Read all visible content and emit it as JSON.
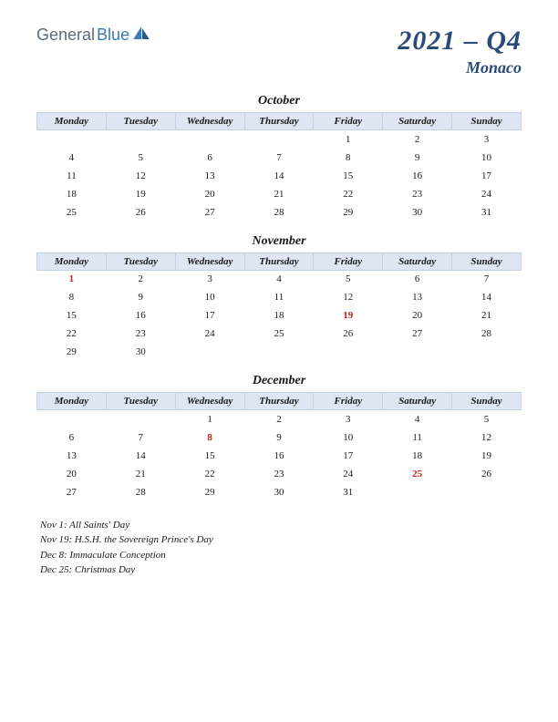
{
  "logo": {
    "part1": "General",
    "part2": "Blue"
  },
  "period": "2021 – Q4",
  "country": "Monaco",
  "colors": {
    "header_bg": "#dde6f2",
    "header_border": "#c5d2e6",
    "title_color": "#2a4a7a",
    "holiday_color": "#c02020",
    "text_color": "#1a1a1a",
    "logo_gray": "#5a6b7a",
    "logo_blue": "#3a7ab5"
  },
  "day_headers": [
    "Monday",
    "Tuesday",
    "Wednesday",
    "Thursday",
    "Friday",
    "Saturday",
    "Sunday"
  ],
  "months": [
    {
      "name": "October",
      "weeks": [
        [
          "",
          "",
          "",
          "",
          "1",
          "2",
          "3"
        ],
        [
          "4",
          "5",
          "6",
          "7",
          "8",
          "9",
          "10"
        ],
        [
          "11",
          "12",
          "13",
          "14",
          "15",
          "16",
          "17"
        ],
        [
          "18",
          "19",
          "20",
          "21",
          "22",
          "23",
          "24"
        ],
        [
          "25",
          "26",
          "27",
          "28",
          "29",
          "30",
          "31"
        ]
      ],
      "holidays": []
    },
    {
      "name": "November",
      "weeks": [
        [
          "1",
          "2",
          "3",
          "4",
          "5",
          "6",
          "7"
        ],
        [
          "8",
          "9",
          "10",
          "11",
          "12",
          "13",
          "14"
        ],
        [
          "15",
          "16",
          "17",
          "18",
          "19",
          "20",
          "21"
        ],
        [
          "22",
          "23",
          "24",
          "25",
          "26",
          "27",
          "28"
        ],
        [
          "29",
          "30",
          "",
          "",
          "",
          "",
          ""
        ]
      ],
      "holidays": [
        "1",
        "19"
      ]
    },
    {
      "name": "December",
      "weeks": [
        [
          "",
          "",
          "1",
          "2",
          "3",
          "4",
          "5"
        ],
        [
          "6",
          "7",
          "8",
          "9",
          "10",
          "11",
          "12"
        ],
        [
          "13",
          "14",
          "15",
          "16",
          "17",
          "18",
          "19"
        ],
        [
          "20",
          "21",
          "22",
          "23",
          "24",
          "25",
          "26"
        ],
        [
          "27",
          "28",
          "29",
          "30",
          "31",
          "",
          ""
        ]
      ],
      "holidays": [
        "8",
        "25"
      ]
    }
  ],
  "holiday_list": [
    "Nov 1: All Saints' Day",
    "Nov 19: H.S.H. the Sovereign Prince's Day",
    "Dec 8: Immaculate Conception",
    "Dec 25: Christmas Day"
  ]
}
